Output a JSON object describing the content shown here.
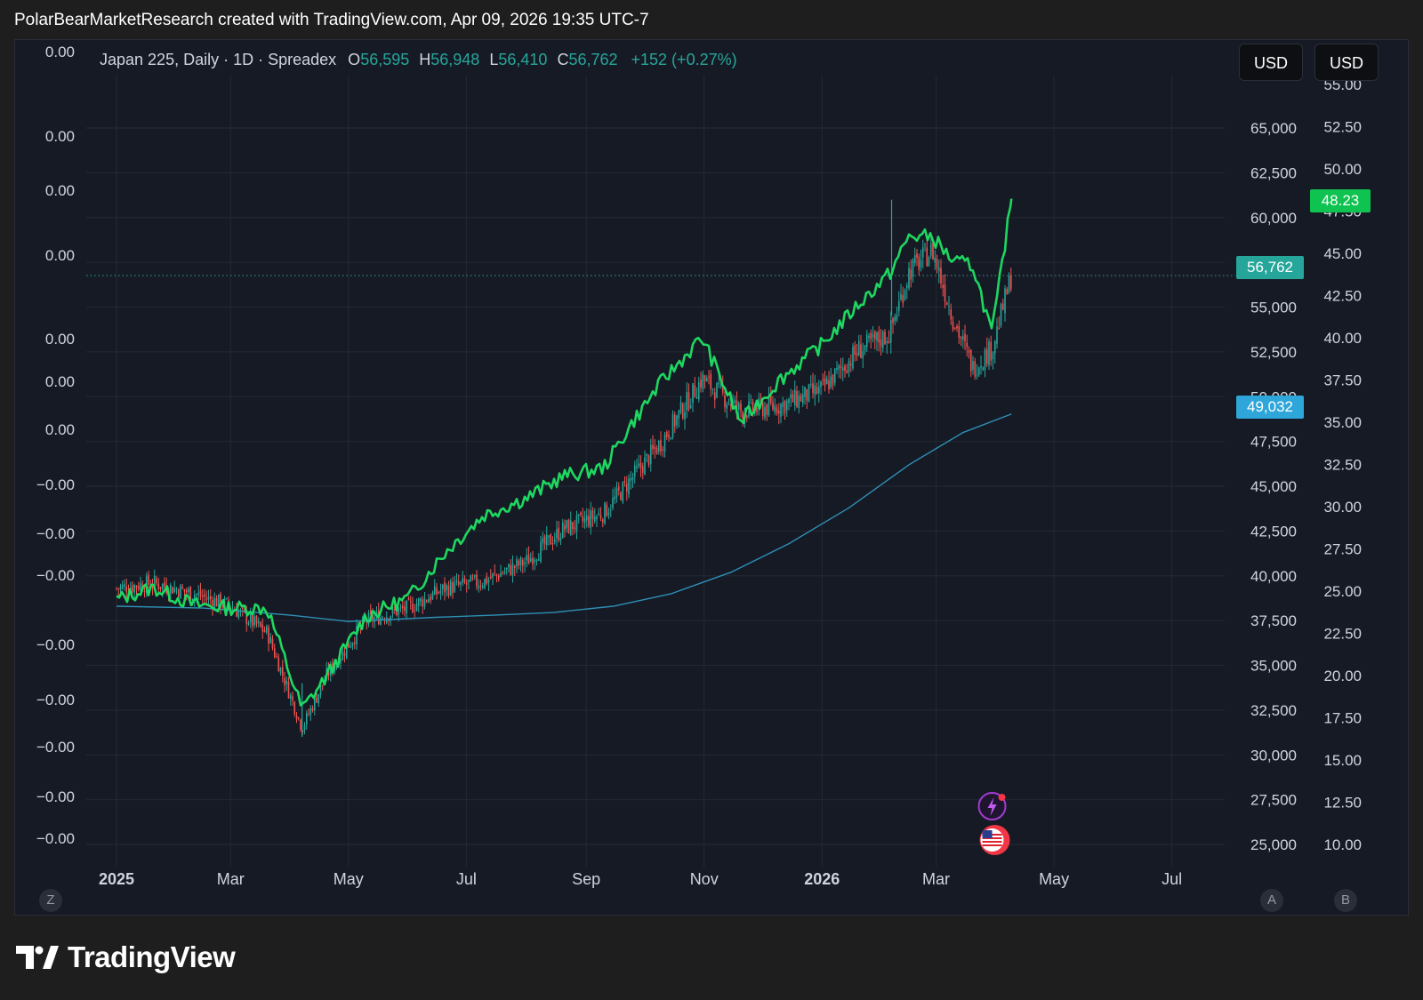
{
  "header": {
    "caption": "PolarBearMarketResearch created with TradingView.com, Apr 09, 2026 19:35 UTC-7"
  },
  "legend": {
    "symbol": "Japan 225, Daily · 1D · Spreadex",
    "open_label": "O",
    "open": "56,595",
    "high_label": "H",
    "high": "56,948",
    "low_label": "L",
    "low": "56,410",
    "close_label": "C",
    "close": "56,762",
    "change": "+152 (+0.27%)"
  },
  "scale_buttons": {
    "usd_a": "USD",
    "usd_b": "USD"
  },
  "corner_buttons": {
    "left": "Z",
    "right_a": "A",
    "right_b": "B"
  },
  "badges": {
    "last_price": "56,762",
    "ma_value": "49,032",
    "series_last": "48.23"
  },
  "footer": {
    "brand": "TradingView"
  },
  "colors": {
    "background": "#161a25",
    "grid": "#252934",
    "up": "#26a69a",
    "down": "#ef5350",
    "overlay_line": "#1ed760",
    "ma_line": "#2e8fb5",
    "last_price_badge": "#26a69a",
    "ma_badge": "#2ea6d9",
    "series_badge": "#0fc350"
  },
  "chart_data": {
    "type": "line",
    "title": "Japan 225, Daily · 1D · Spreadex",
    "x_ticks": [
      "2025",
      "Mar",
      "May",
      "Jul",
      "Sep",
      "Nov",
      "2026",
      "Mar",
      "May",
      "Jul"
    ],
    "right_axis_1": {
      "ticks": [
        "65,000",
        "62,500",
        "60,000",
        "57,500",
        "55,000",
        "52,500",
        "50,000",
        "47,500",
        "45,000",
        "42,500",
        "40,000",
        "37,500",
        "35,000",
        "32,500",
        "30,000",
        "27,500",
        "25,000"
      ],
      "range": [
        25000,
        65000
      ]
    },
    "right_axis_2": {
      "ticks": [
        "55.00",
        "52.50",
        "50.00",
        "47.50",
        "45.00",
        "42.50",
        "40.00",
        "37.50",
        "35.00",
        "32.50",
        "30.00",
        "27.50",
        "25.00",
        "22.50",
        "20.00",
        "17.50",
        "15.00",
        "12.50",
        "10.00"
      ],
      "range": [
        10,
        55
      ]
    },
    "left_axis_ticks": [
      "0.00",
      "0.00",
      "0.00",
      "0.00",
      "0.00",
      "0.00",
      "0.00",
      "−0.00",
      "−0.00",
      "−0.00",
      "−0.00",
      "−0.00",
      "−0.00",
      "−0.00",
      "−0.00"
    ],
    "series": [
      {
        "name": "Japan 225",
        "style": "candles",
        "x": [
          "2025-01-01",
          "2025-01-20",
          "2025-02-10",
          "2025-03-01",
          "2025-03-20",
          "2025-04-07",
          "2025-04-20",
          "2025-05-10",
          "2025-06-01",
          "2025-06-20",
          "2025-07-10",
          "2025-08-01",
          "2025-08-20",
          "2025-09-10",
          "2025-09-25",
          "2025-10-10",
          "2025-10-31",
          "2025-11-20",
          "2025-12-10",
          "2026-01-01",
          "2026-01-20",
          "2026-02-05",
          "2026-02-15",
          "2026-02-27",
          "2026-03-10",
          "2026-03-20",
          "2026-03-30",
          "2026-04-09"
        ],
        "values": [
          39300,
          39600,
          39000,
          38300,
          36800,
          31500,
          34500,
          37500,
          38200,
          39300,
          39700,
          40800,
          42600,
          43500,
          45500,
          47500,
          51000,
          49200,
          49500,
          50400,
          52600,
          53500,
          57000,
          58200,
          54300,
          51600,
          52700,
          56762
        ]
      },
      {
        "name": "Green overlay",
        "style": "line",
        "x": [
          "2025-01-01",
          "2025-01-20",
          "2025-02-10",
          "2025-03-01",
          "2025-03-20",
          "2025-04-07",
          "2025-04-20",
          "2025-05-10",
          "2025-06-01",
          "2025-06-20",
          "2025-07-10",
          "2025-08-01",
          "2025-08-20",
          "2025-09-10",
          "2025-09-25",
          "2025-10-10",
          "2025-10-31",
          "2025-11-20",
          "2025-12-10",
          "2026-01-01",
          "2026-01-20",
          "2026-02-05",
          "2026-02-15",
          "2026-02-27",
          "2026-03-10",
          "2026-03-20",
          "2026-03-30",
          "2026-04-09"
        ],
        "values": [
          24.5,
          25.2,
          24.2,
          24.0,
          24.0,
          18.0,
          20.0,
          23.5,
          24.6,
          27.3,
          29.5,
          30.5,
          31.8,
          32.3,
          35.0,
          37.4,
          40.0,
          35.0,
          37.5,
          39.6,
          42.0,
          43.8,
          46.0,
          46.0,
          44.5,
          44.3,
          40.2,
          48.23
        ]
      },
      {
        "name": "Moving average",
        "style": "line",
        "x": [
          "2025-01-01",
          "2025-02-15",
          "2025-04-01",
          "2025-05-01",
          "2025-06-15",
          "2025-07-15",
          "2025-08-15",
          "2025-09-15",
          "2025-10-15",
          "2025-11-15",
          "2025-12-15",
          "2026-01-15",
          "2026-02-15",
          "2026-03-15",
          "2026-04-09"
        ],
        "values": [
          38300,
          38200,
          37800,
          37450,
          37680,
          37800,
          37950,
          38300,
          39000,
          40200,
          41800,
          43800,
          46200,
          48000,
          49032
        ]
      }
    ],
    "last_price_line": 56762,
    "grid": true
  }
}
